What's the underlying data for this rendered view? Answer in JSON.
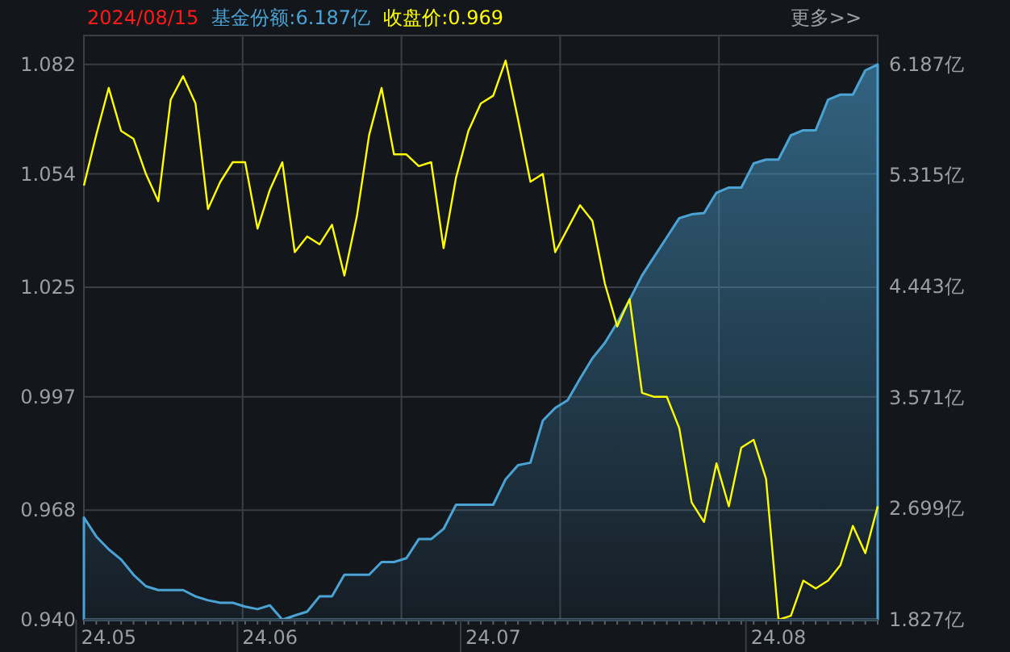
{
  "chart_data": {
    "type": "line",
    "title": "2024/08/15",
    "annotations": [
      "基金份额:6.187亿",
      "收盘价:0.969",
      "更多>>"
    ],
    "categories": [
      null,
      null,
      "24.05",
      null,
      null,
      null,
      null,
      null,
      null,
      null,
      null,
      null,
      null,
      null,
      null,
      "24.06",
      null,
      null,
      null,
      null,
      null,
      null,
      null,
      null,
      null,
      null,
      null,
      null,
      null,
      null,
      null,
      null,
      null,
      "24.07",
      null,
      null,
      null,
      null,
      null,
      null,
      null,
      null,
      null,
      null,
      null,
      null,
      null,
      null,
      null,
      null,
      null,
      null,
      null,
      null,
      null,
      null,
      "24.08",
      null,
      null,
      null,
      null,
      null,
      null,
      null,
      null
    ],
    "ylim": [
      0.94,
      1.0894
    ],
    "yticks": [
      {
        "value": 0.94,
        "label": "0.940"
      },
      {
        "value": 0.968,
        "label": "0.968"
      },
      {
        "value": 0.997,
        "label": "0.997"
      },
      {
        "value": 1.025,
        "label": "1.025"
      },
      {
        "value": 1.054,
        "label": "1.054"
      },
      {
        "value": 1.082,
        "label": "1.082"
      }
    ],
    "y2lim": [
      1.827,
      6.414
    ],
    "y2ticks": [
      {
        "value": 1.827,
        "label": "1.827亿"
      },
      {
        "value": 2.699,
        "label": "2.699亿"
      },
      {
        "value": 3.571,
        "label": "3.571亿"
      },
      {
        "value": 4.443,
        "label": "4.443亿"
      },
      {
        "value": 5.315,
        "label": "5.315亿"
      },
      {
        "value": 6.187,
        "label": "6.187亿"
      }
    ],
    "grid": true,
    "series": [
      {
        "type": "area",
        "axis": "y2",
        "color": "#4aa3d4",
        "values": [
          2.63,
          2.48,
          2.38,
          2.3,
          2.18,
          2.09,
          2.06,
          2.06,
          2.06,
          2.01,
          1.98,
          1.96,
          1.96,
          1.93,
          1.91,
          1.94,
          1.827,
          1.86,
          1.89,
          2.01,
          2.01,
          2.18,
          2.18,
          2.18,
          2.28,
          2.28,
          2.31,
          2.46,
          2.46,
          2.54,
          2.73,
          2.73,
          2.73,
          2.73,
          2.93,
          3.04,
          3.06,
          3.39,
          3.49,
          3.55,
          3.72,
          3.88,
          4.0,
          4.16,
          4.34,
          4.53,
          4.68,
          4.83,
          4.98,
          5.01,
          5.02,
          5.18,
          5.22,
          5.22,
          5.41,
          5.44,
          5.44,
          5.63,
          5.67,
          5.67,
          5.91,
          5.95,
          5.95,
          6.14,
          6.187
        ]
      },
      {
        "type": "line",
        "color": "#ffff00",
        "values": [
          1.051,
          1.064,
          1.076,
          1.065,
          1.063,
          1.054,
          1.047,
          1.073,
          1.079,
          1.072,
          1.045,
          1.052,
          1.057,
          1.057,
          1.04,
          1.05,
          1.057,
          1.034,
          1.038,
          1.036,
          1.041,
          1.028,
          1.043,
          1.064,
          1.076,
          1.059,
          1.059,
          1.056,
          1.057,
          1.035,
          1.053,
          1.065,
          1.072,
          1.074,
          1.083,
          1.068,
          1.052,
          1.054,
          1.034,
          1.04,
          1.046,
          1.042,
          1.026,
          1.015,
          1.022,
          0.998,
          0.997,
          0.997,
          0.989,
          0.97,
          0.965,
          0.98,
          0.969,
          0.984,
          0.986,
          0.976,
          0.94,
          0.941,
          0.95,
          0.948,
          0.95,
          0.954,
          0.964,
          0.957,
          0.969
        ]
      }
    ]
  }
}
